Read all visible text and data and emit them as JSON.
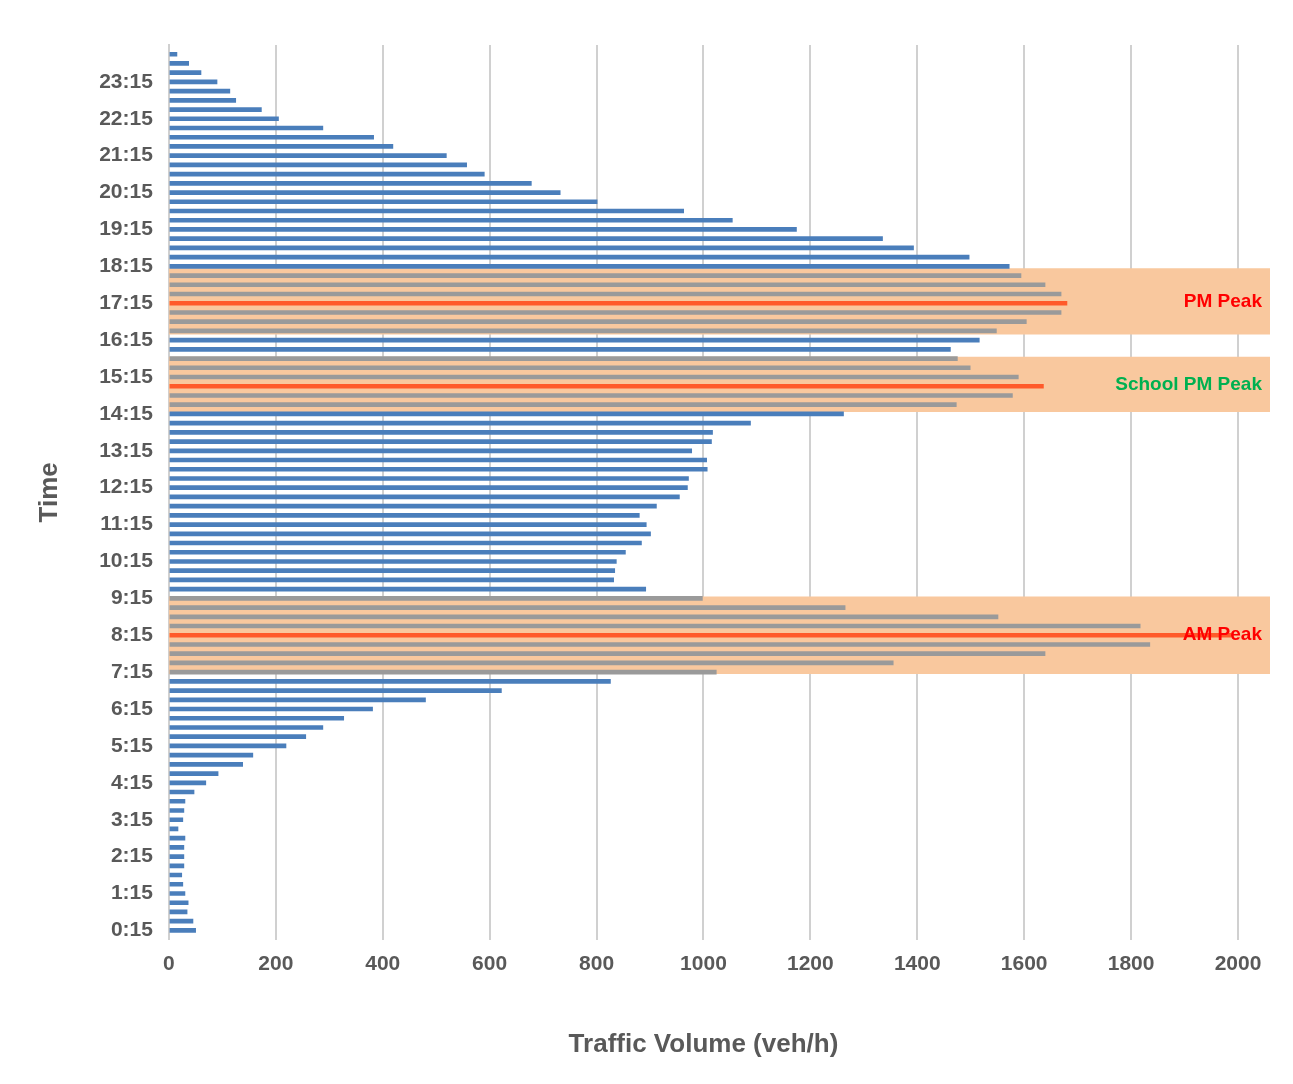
{
  "chart_data": {
    "type": "bar",
    "orientation": "horizontal",
    "xlabel": "Traffic Volume (veh/h)",
    "ylabel": "Time",
    "x": [
      0.25,
      0.5,
      0.75,
      1,
      1.25,
      1.5,
      1.75,
      2,
      2.25,
      2.5,
      2.75,
      3,
      3.25,
      3.5,
      3.75,
      4,
      4.25,
      4.5,
      4.75,
      5,
      5.25,
      5.5,
      5.75,
      6,
      6.25,
      6.5,
      6.75,
      7,
      7.25,
      7.5,
      7.75,
      8,
      8.25,
      8.5,
      8.75,
      9,
      9.25,
      9.5,
      9.75,
      10,
      10.25,
      10.5,
      10.75,
      11,
      11.25,
      11.5,
      11.75,
      12,
      12.25,
      12.5,
      12.75,
      13,
      13.25,
      13.5,
      13.75,
      14,
      14.25,
      14.5,
      14.75,
      15,
      15.25,
      15.5,
      15.75,
      16,
      16.25,
      16.5,
      16.75,
      17,
      17.25,
      17.5,
      17.75,
      18,
      18.25,
      18.5,
      18.75,
      19,
      19.25,
      19.5,
      19.75,
      20,
      20.25,
      20.5,
      20.75,
      21,
      21.25,
      21.5,
      21.75,
      22,
      22.25,
      22.5,
      22.75,
      23,
      23.25,
      23.5,
      23.75,
      24
    ],
    "series": [
      {
        "values": [
          50,
          45,
          34,
          36,
          30,
          26,
          24,
          28,
          28,
          28,
          30,
          17,
          26,
          28,
          30,
          47,
          69,
          92,
          138,
          157,
          219,
          256,
          288,
          327,
          381,
          480,
          622,
          826,
          1024,
          1355,
          1639,
          1835,
          1987,
          1817,
          1551,
          1265,
          998,
          892,
          832,
          834,
          837,
          854,
          884,
          901,
          893,
          880,
          912,
          955,
          970,
          972,
          1007,
          1006,
          978,
          1015,
          1017,
          1088,
          1262,
          1473,
          1578,
          1636,
          1589,
          1499,
          1475,
          1462,
          1516,
          1548,
          1604,
          1669,
          1680,
          1669,
          1639,
          1594,
          1572,
          1497,
          1393,
          1335,
          1174,
          1054,
          963,
          801,
          732,
          678,
          590,
          557,
          519,
          419,
          383,
          288,
          205,
          173,
          125,
          114,
          90,
          60,
          37,
          15
        ],
        "colors": [
          "#4a7ebb",
          "#4a7ebb",
          "#4a7ebb",
          "#4a7ebb",
          "#4a7ebb",
          "#4a7ebb",
          "#4a7ebb",
          "#4a7ebb",
          "#4a7ebb",
          "#4a7ebb",
          "#4a7ebb",
          "#4a7ebb",
          "#4a7ebb",
          "#4a7ebb",
          "#4a7ebb",
          "#4a7ebb",
          "#4a7ebb",
          "#4a7ebb",
          "#4a7ebb",
          "#4a7ebb",
          "#4a7ebb",
          "#4a7ebb",
          "#4a7ebb",
          "#4a7ebb",
          "#4a7ebb",
          "#4a7ebb",
          "#4a7ebb",
          "#4a7ebb",
          "#9a9a9a",
          "#9a9a9a",
          "#9a9a9a",
          "#9a9a9a",
          "#ff5a2a",
          "#9a9a9a",
          "#9a9a9a",
          "#9a9a9a",
          "#9a9a9a",
          "#4a7ebb",
          "#4a7ebb",
          "#4a7ebb",
          "#4a7ebb",
          "#4a7ebb",
          "#4a7ebb",
          "#4a7ebb",
          "#4a7ebb",
          "#4a7ebb",
          "#4a7ebb",
          "#4a7ebb",
          "#4a7ebb",
          "#4a7ebb",
          "#4a7ebb",
          "#4a7ebb",
          "#4a7ebb",
          "#4a7ebb",
          "#4a7ebb",
          "#4a7ebb",
          "#4a7ebb",
          "#9a9a9a",
          "#9a9a9a",
          "#ff5a2a",
          "#9a9a9a",
          "#9a9a9a",
          "#9a9a9a",
          "#4a7ebb",
          "#4a7ebb",
          "#9a9a9a",
          "#9a9a9a",
          "#9a9a9a",
          "#ff5a2a",
          "#9a9a9a",
          "#9a9a9a",
          "#9a9a9a",
          "#4a7ebb",
          "#4a7ebb",
          "#4a7ebb",
          "#4a7ebb",
          "#4a7ebb",
          "#4a7ebb",
          "#4a7ebb",
          "#4a7ebb",
          "#4a7ebb",
          "#4a7ebb",
          "#4a7ebb",
          "#4a7ebb",
          "#4a7ebb",
          "#4a7ebb",
          "#4a7ebb",
          "#4a7ebb",
          "#4a7ebb",
          "#4a7ebb",
          "#4a7ebb",
          "#4a7ebb",
          "#4a7ebb",
          "#4a7ebb",
          "#4a7ebb",
          "#4a7ebb"
        ]
      }
    ],
    "xlim": [
      0,
      2000
    ],
    "xticks": [
      0,
      200,
      400,
      600,
      800,
      1000,
      1200,
      1400,
      1600,
      1800,
      2000
    ],
    "ylim": [
      0,
      24.25
    ],
    "yticks": [
      {
        "value": 0.25,
        "label": "0:15"
      },
      {
        "value": 1.25,
        "label": "1:15"
      },
      {
        "value": 2.25,
        "label": "2:15"
      },
      {
        "value": 3.25,
        "label": "3:15"
      },
      {
        "value": 4.25,
        "label": "4:15"
      },
      {
        "value": 5.25,
        "label": "5:15"
      },
      {
        "value": 6.25,
        "label": "6:15"
      },
      {
        "value": 7.25,
        "label": "7:15"
      },
      {
        "value": 8.25,
        "label": "8:15"
      },
      {
        "value": 9.25,
        "label": "9:15"
      },
      {
        "value": 10.25,
        "label": "10:15"
      },
      {
        "value": 11.25,
        "label": "11:15"
      },
      {
        "value": 12.25,
        "label": "12:15"
      },
      {
        "value": 13.25,
        "label": "13:15"
      },
      {
        "value": 14.25,
        "label": "14:15"
      },
      {
        "value": 15.25,
        "label": "15:15"
      },
      {
        "value": 16.25,
        "label": "16:15"
      },
      {
        "value": 17.25,
        "label": "17:15"
      },
      {
        "value": 18.25,
        "label": "18:15"
      },
      {
        "value": 19.25,
        "label": "19:15"
      },
      {
        "value": 20.25,
        "label": "20:15"
      },
      {
        "value": 21.25,
        "label": "21:15"
      },
      {
        "value": 22.25,
        "label": "22:15"
      },
      {
        "value": 23.25,
        "label": "23:15"
      }
    ],
    "bands": [
      {
        "axis": "y",
        "from": 16.4,
        "to": 18.2,
        "label": "PM Peak",
        "color": "#f9c89e"
      },
      {
        "axis": "y",
        "from": 14.3,
        "to": 15.8,
        "label": "School PM Peak",
        "color": "#f9c89e"
      },
      {
        "axis": "y",
        "from": 7.2,
        "to": 9.3,
        "label": "AM Peak",
        "color": "#f9c89e"
      }
    ],
    "grid": "x",
    "legend": false
  }
}
